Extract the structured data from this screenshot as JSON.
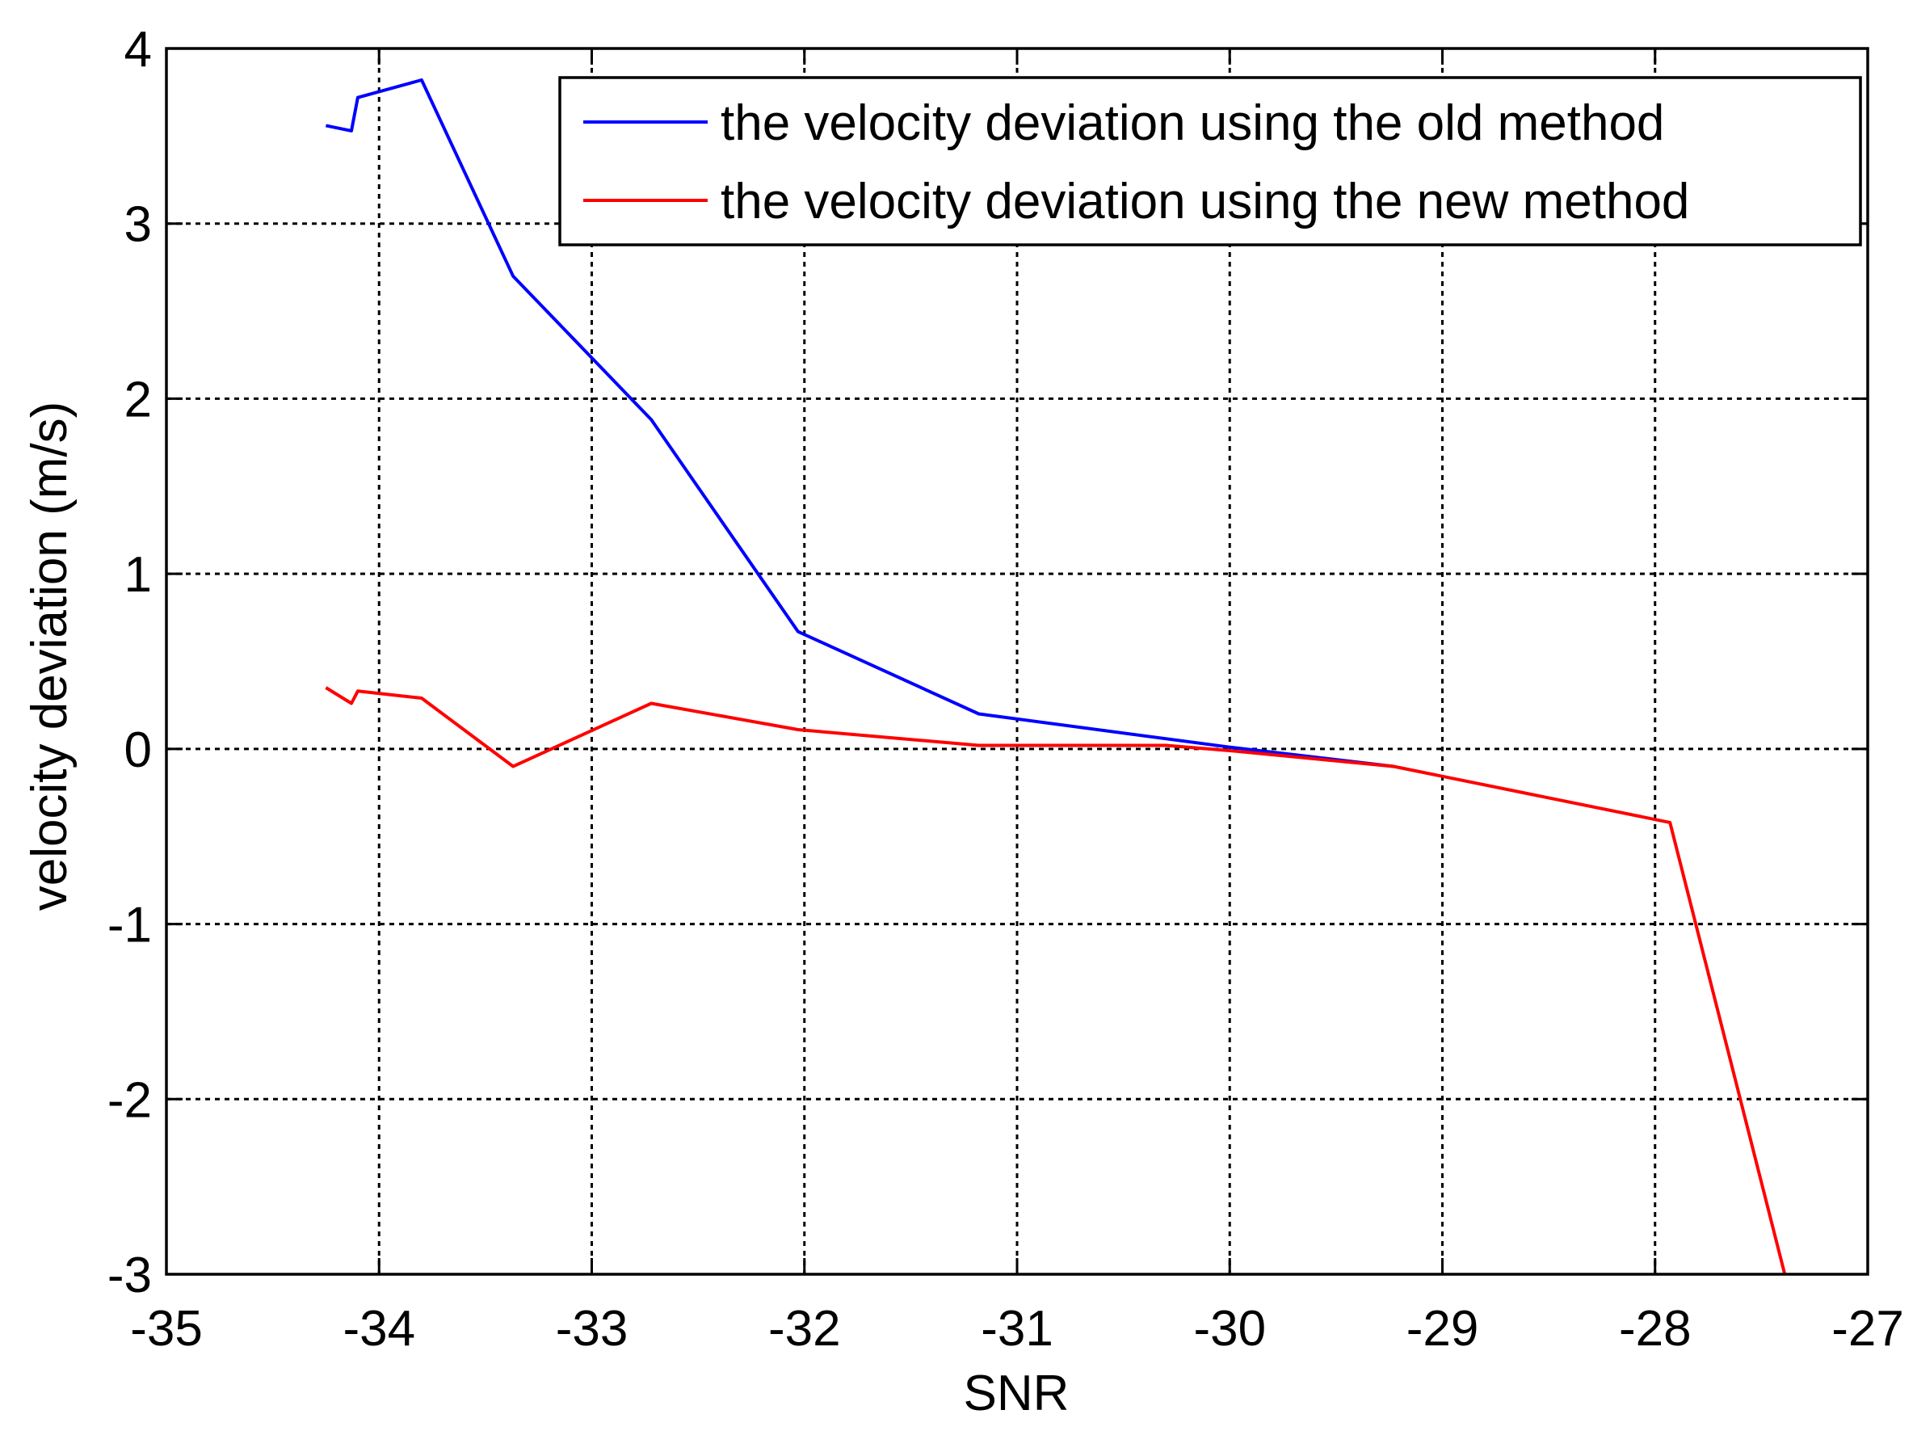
{
  "chart_data": {
    "type": "line",
    "title": "",
    "xlabel": "SNR",
    "ylabel": "velocity deviation (m/s)",
    "xlim": [
      -35,
      -27
    ],
    "ylim": [
      -3,
      4
    ],
    "xticks": [
      -35,
      -34,
      -33,
      -32,
      -31,
      -30,
      -29,
      -28,
      -27
    ],
    "yticks": [
      -3,
      -2,
      -1,
      0,
      1,
      2,
      3,
      4
    ],
    "xtick_labels": [
      "-35",
      "-34",
      "-33",
      "-32",
      "-31",
      "-30",
      "-29",
      "-28",
      "-27"
    ],
    "ytick_labels": [
      "-3",
      "-2",
      "-1",
      "0",
      "1",
      "2",
      "3",
      "4"
    ],
    "grid": true,
    "legend_position": "top-right",
    "series": [
      {
        "name": "the velocity deviation using the old method",
        "color": "#0000ff",
        "x": [
          -34.25,
          -34.13,
          -34.1,
          -33.8,
          -33.37,
          -32.72,
          -32.03,
          -31.18,
          -30.0,
          -29.23
        ],
        "y": [
          3.56,
          3.53,
          3.72,
          3.82,
          2.7,
          1.88,
          0.67,
          0.2,
          0.01,
          -0.1
        ]
      },
      {
        "name": "the velocity deviation using the new method",
        "color": "#ff0000",
        "x": [
          -34.25,
          -34.13,
          -34.1,
          -33.8,
          -33.37,
          -32.72,
          -32.03,
          -31.18,
          -30.3,
          -30.0,
          -29.23,
          -27.93,
          -27.39
        ],
        "y": [
          0.35,
          0.26,
          0.33,
          0.29,
          -0.1,
          0.26,
          0.11,
          0.02,
          0.02,
          -0.01,
          -0.1,
          -0.42,
          -3.0
        ]
      }
    ]
  }
}
